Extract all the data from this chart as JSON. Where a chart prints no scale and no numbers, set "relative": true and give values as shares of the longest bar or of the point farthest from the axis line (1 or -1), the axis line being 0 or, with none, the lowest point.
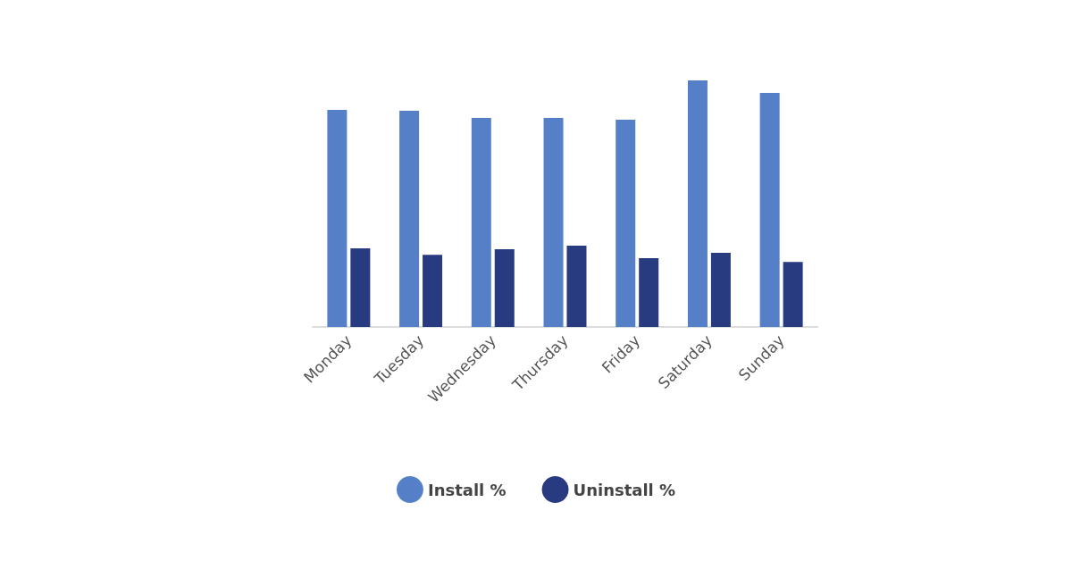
{
  "chart_data": {
    "type": "bar",
    "relative": true,
    "categories": [
      "Monday",
      "Tuesday",
      "Wednesday",
      "Thursday",
      "Friday",
      "Saturday",
      "Sunday"
    ],
    "series": [
      {
        "name": "Install %",
        "color": "#5580c8",
        "values": [
          0.88,
          0.877,
          0.848,
          0.848,
          0.841,
          1,
          0.949
        ]
      },
      {
        "name": "Uninstall %",
        "color": "#283a80",
        "values": [
          0.319,
          0.293,
          0.315,
          0.33,
          0.279,
          0.301,
          0.264
        ]
      }
    ],
    "legend": "bottom"
  }
}
